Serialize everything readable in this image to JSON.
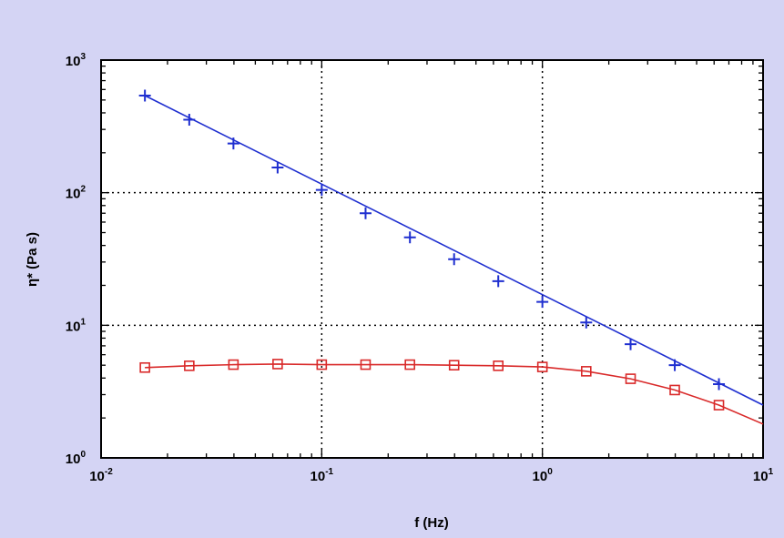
{
  "chart_data": {
    "type": "line",
    "title": "",
    "xlabel": "f (Hz)",
    "ylabel": "η* (Pa s)",
    "xscale": "log",
    "yscale": "log",
    "xlim": [
      0.01,
      10
    ],
    "ylim": [
      1,
      1000
    ],
    "grid": true,
    "legend": "none",
    "x_ticks": [
      {
        "base": "10",
        "exp": "-2"
      },
      {
        "base": "10",
        "exp": "-1"
      },
      {
        "base": "10",
        "exp": "0"
      },
      {
        "base": "10",
        "exp": "1"
      }
    ],
    "y_ticks": [
      {
        "base": "10",
        "exp": "0"
      },
      {
        "base": "10",
        "exp": "1"
      },
      {
        "base": "10",
        "exp": "2"
      },
      {
        "base": "10",
        "exp": "3"
      }
    ],
    "series": [
      {
        "color": "#1f2fd0",
        "marker": "plus",
        "x": [
          0.0158,
          0.0251,
          0.0398,
          0.0631,
          0.1,
          0.158,
          0.251,
          0.398,
          0.631,
          1.0,
          1.58,
          2.51,
          3.98,
          6.31
        ],
        "y": [
          540,
          355,
          235,
          155,
          105,
          70,
          46,
          31.5,
          21.5,
          15,
          10.5,
          7.2,
          5.0,
          3.6
        ],
        "fit_x": [
          0.0158,
          10
        ],
        "fit_y": [
          540,
          2.5
        ]
      },
      {
        "color": "#d92a2a",
        "marker": "square",
        "x": [
          0.0158,
          0.0251,
          0.0398,
          0.0631,
          0.1,
          0.158,
          0.251,
          0.398,
          0.631,
          1.0,
          1.58,
          2.51,
          3.98,
          6.31
        ],
        "y": [
          4.8,
          4.95,
          5.05,
          5.1,
          5.05,
          5.05,
          5.05,
          5.0,
          4.95,
          4.85,
          4.5,
          3.95,
          3.25,
          2.5
        ],
        "fit_x": [
          0.0158,
          0.0251,
          0.0398,
          0.0631,
          0.1,
          0.158,
          0.251,
          0.398,
          0.631,
          1.0,
          1.58,
          2.51,
          3.98,
          6.31,
          10
        ],
        "fit_y": [
          4.8,
          4.95,
          5.05,
          5.1,
          5.05,
          5.05,
          5.05,
          5.0,
          4.95,
          4.85,
          4.5,
          3.95,
          3.25,
          2.5,
          1.8
        ]
      }
    ]
  }
}
